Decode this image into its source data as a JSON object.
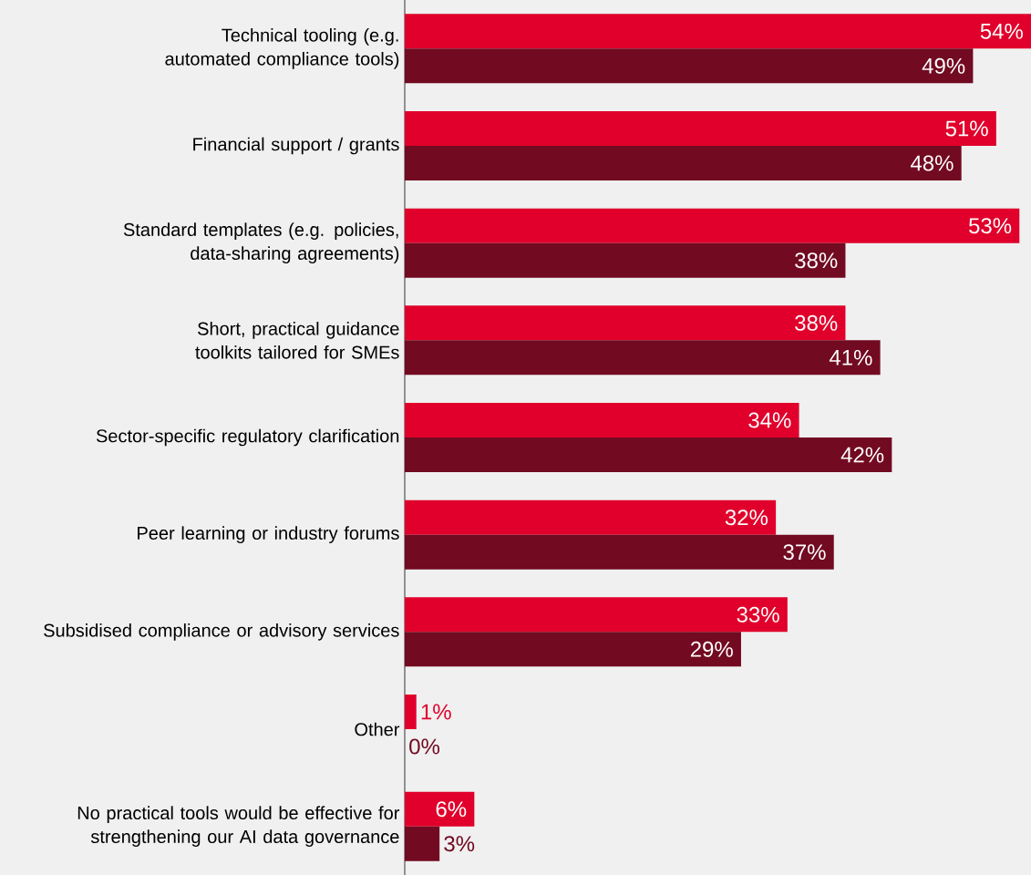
{
  "chart_data": {
    "type": "bar",
    "orientation": "horizontal",
    "categories": [
      "Technical tooling (e.g. automated compliance tools)",
      "Financial support / grants",
      "Standard templates (e.g. policies, data-sharing agreements)",
      "Short, practical guidance toolkits tailored for SMEs",
      "Sector-specific regulatory clarification",
      "Peer learning or industry forums",
      "Subsidised compliance or advisory services",
      "Other",
      "No practical tools would be effective for strengthening our AI data governance"
    ],
    "xlim": [
      0,
      54
    ],
    "series": [
      {
        "color": "#e0002b",
        "values": [
          54,
          51,
          53,
          38,
          34,
          32,
          33,
          1,
          6
        ],
        "value_labels": [
          "54%",
          "51%",
          "53%",
          "38%",
          "34%",
          "32%",
          "33%",
          "1%",
          "6%"
        ]
      },
      {
        "color": "#720a21",
        "values": [
          49,
          48,
          38,
          41,
          42,
          37,
          29,
          0,
          3
        ],
        "value_labels": [
          "49%",
          "48%",
          "38%",
          "41%",
          "42%",
          "37%",
          "29%",
          "0%",
          "3%"
        ]
      }
    ]
  }
}
